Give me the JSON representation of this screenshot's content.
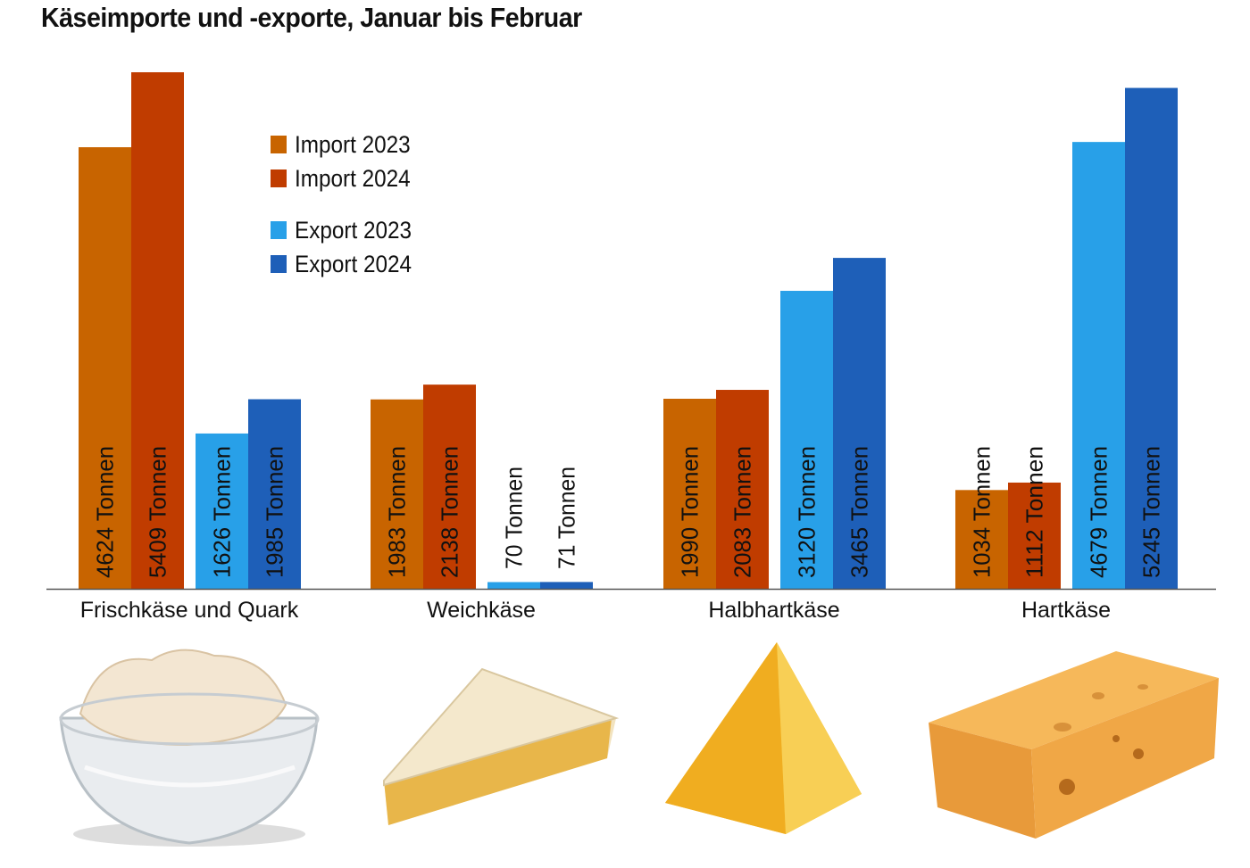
{
  "chart_data": {
    "type": "bar",
    "title": "Käseimporte und -exporte, Januar bis Februar",
    "categories": [
      "Frischkäse und Quark",
      "Weichkäse",
      "Halbhartkäse",
      "Hartkäse"
    ],
    "unit": "Tonnen",
    "series": [
      {
        "name": "Import 2023",
        "color": "#c86400",
        "values": [
          4624,
          1983,
          1990,
          1034
        ]
      },
      {
        "name": "Import 2024",
        "color": "#c03c00",
        "values": [
          5409,
          2138,
          2083,
          1112
        ]
      },
      {
        "name": "Export 2023",
        "color": "#28a0e8",
        "values": [
          1626,
          70,
          3120,
          4679
        ]
      },
      {
        "name": "Export 2024",
        "color": "#1e5fb8",
        "values": [
          1985,
          71,
          3465,
          5245
        ]
      }
    ],
    "ylim": [
      0,
      5409
    ],
    "grid": false,
    "legend": "top-left",
    "images": [
      "bowl-of-cream-cheese",
      "brie-wedge",
      "semi-hard-cheese-wedge",
      "swiss-hard-cheese-block"
    ]
  }
}
